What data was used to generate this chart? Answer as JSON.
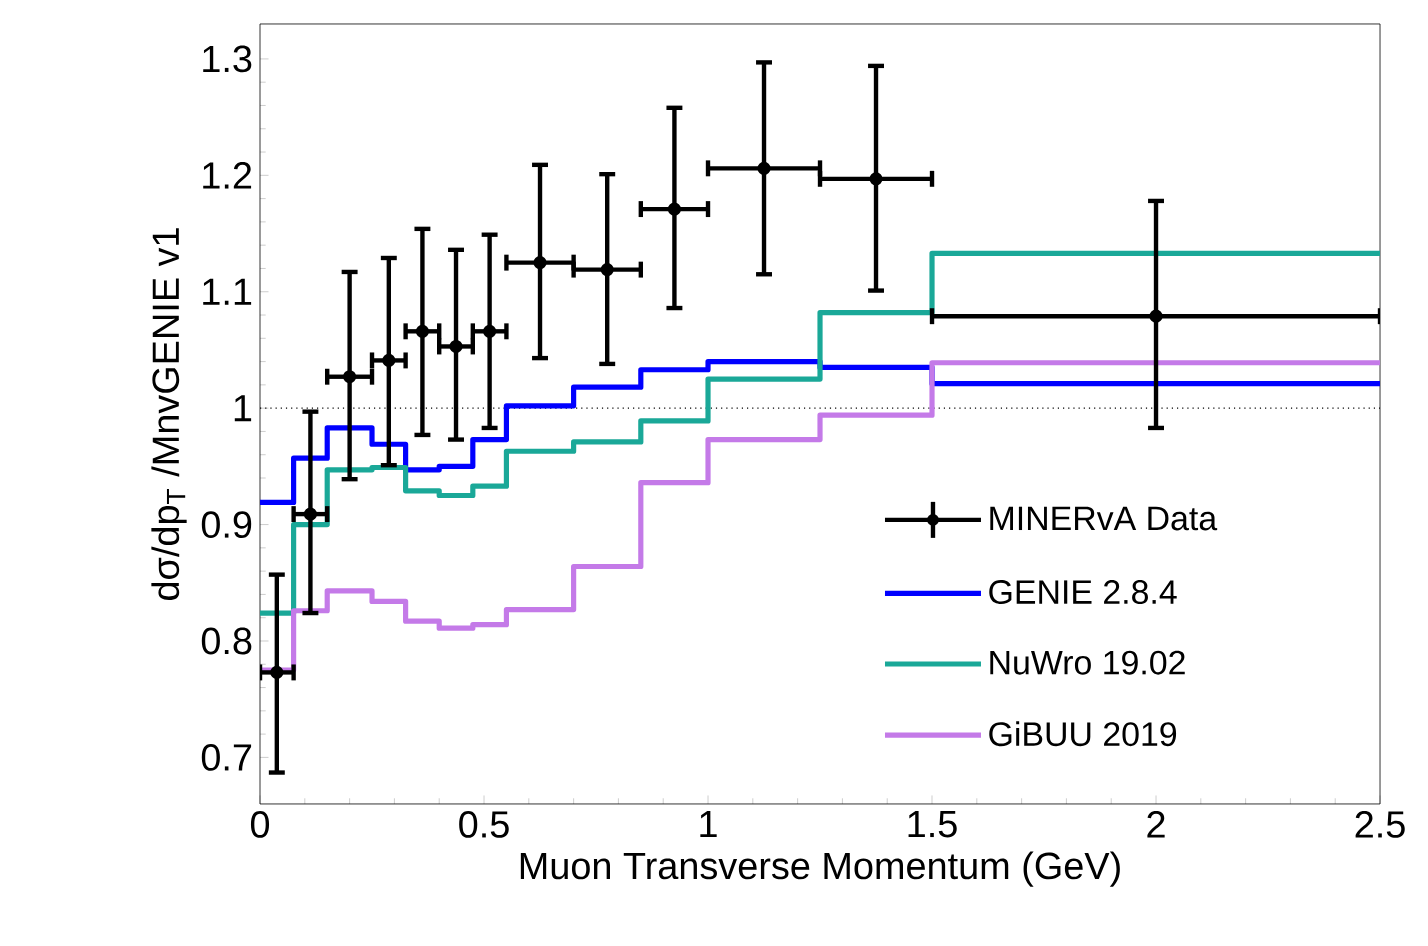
{
  "chart_data": {
    "type": "step",
    "xlabel": "Muon Transverse Momentum (GeV)",
    "ylabel": "dσ/dp$_{T}$ /MnvGENIE v1",
    "xlim": [
      0,
      2.5
    ],
    "ylim": [
      0.66,
      1.33
    ],
    "xticks": [
      0,
      0.5,
      1,
      1.5,
      2,
      2.5
    ],
    "yticks": [
      0.7,
      0.8,
      0.9,
      1,
      1.1,
      1.2,
      1.3
    ],
    "legend": "bottom right",
    "grid": false,
    "ref_lines": [
      {
        "axis": "y",
        "value": 1,
        "line_style": "dotted",
        "color": "#000000"
      }
    ],
    "series": [
      {
        "name": "MINERvA Data",
        "type": "scatter",
        "color": "#000000",
        "marker": "circle",
        "x": [
          0.0375,
          0.1125,
          0.2,
          0.2875,
          0.3625,
          0.4375,
          0.5125,
          0.625,
          0.775,
          0.925,
          1.125,
          1.375,
          2.0
        ],
        "values": [
          0.773,
          0.909,
          1.027,
          1.041,
          1.066,
          1.053,
          1.066,
          1.125,
          1.119,
          1.171,
          1.206,
          1.197,
          1.079
        ],
        "errors": [
          [
            0.687,
            0.857
          ],
          [
            0.824,
            0.997
          ],
          [
            0.939,
            1.117
          ],
          [
            0.951,
            1.129
          ],
          [
            0.977,
            1.154
          ],
          [
            0.973,
            1.136
          ],
          [
            0.983,
            1.149
          ],
          [
            1.043,
            1.209
          ],
          [
            1.038,
            1.201
          ],
          [
            1.086,
            1.258
          ],
          [
            1.115,
            1.297
          ],
          [
            1.101,
            1.294
          ],
          [
            0.983,
            1.178
          ]
        ],
        "xerrors": [
          0.0375,
          0.0375,
          0.05,
          0.0375,
          0.0375,
          0.0375,
          0.0375,
          0.075,
          0.075,
          0.075,
          0.125,
          0.125,
          0.5
        ]
      },
      {
        "name": "GENIE 2.8.4",
        "color": "#0000ff",
        "x": [
          0,
          0.075,
          0.15,
          0.25,
          0.325,
          0.4,
          0.475,
          0.55,
          0.7,
          0.85,
          1.0,
          1.25,
          1.5,
          2.5
        ],
        "values": [
          0.919,
          0.957,
          0.983,
          0.969,
          0.947,
          0.95,
          0.973,
          1.002,
          1.018,
          1.033,
          1.04,
          1.035,
          1.021,
          1.021
        ]
      },
      {
        "name": "NuWro 19.02",
        "color": "#1aa898",
        "x": [
          0,
          0.075,
          0.15,
          0.25,
          0.325,
          0.4,
          0.475,
          0.55,
          0.7,
          0.85,
          1.0,
          1.25,
          1.5,
          2.5
        ],
        "values": [
          0.824,
          0.9,
          0.947,
          0.949,
          0.929,
          0.925,
          0.933,
          0.963,
          0.971,
          0.989,
          1.025,
          1.082,
          1.133,
          1.133
        ]
      },
      {
        "name": "GiBUU 2019",
        "color": "#c47ae8",
        "x": [
          0,
          0.075,
          0.15,
          0.25,
          0.325,
          0.4,
          0.475,
          0.55,
          0.7,
          0.85,
          1.0,
          1.25,
          1.5,
          2.5
        ],
        "values": [
          0.775,
          0.826,
          0.843,
          0.834,
          0.817,
          0.811,
          0.814,
          0.827,
          0.864,
          0.936,
          0.973,
          0.994,
          1.039,
          1.039
        ]
      }
    ]
  }
}
